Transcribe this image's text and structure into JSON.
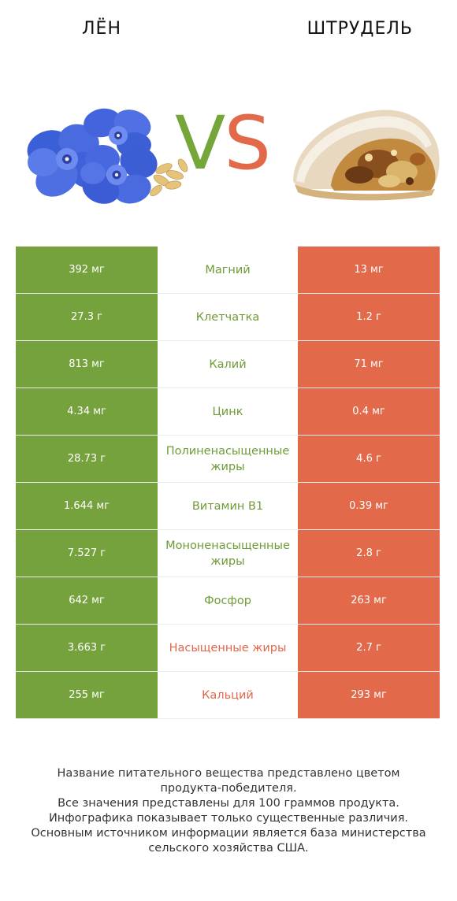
{
  "header": {
    "left_title": "ЛЁН",
    "right_title": "ШТРУДЕЛЬ"
  },
  "vs": {
    "v": "V",
    "s": "S"
  },
  "colors": {
    "green": "#76a23d",
    "red": "#e2694a"
  },
  "rows": [
    {
      "left": "392 мг",
      "name": "Магний",
      "right": "13 мг",
      "winner": "left"
    },
    {
      "left": "27.3 г",
      "name": "Клетчатка",
      "right": "1.2 г",
      "winner": "left"
    },
    {
      "left": "813 мг",
      "name": "Калий",
      "right": "71 мг",
      "winner": "left"
    },
    {
      "left": "4.34 мг",
      "name": "Цинк",
      "right": "0.4 мг",
      "winner": "left"
    },
    {
      "left": "28.73 г",
      "name": "Полиненасыщенные жиры",
      "right": "4.6 г",
      "winner": "left"
    },
    {
      "left": "1.644 мг",
      "name": "Витамин B1",
      "right": "0.39 мг",
      "winner": "left"
    },
    {
      "left": "7.527 г",
      "name": "Мононенасыщенные жиры",
      "right": "2.8 г",
      "winner": "left"
    },
    {
      "left": "642 мг",
      "name": "Фосфор",
      "right": "263 мг",
      "winner": "left"
    },
    {
      "left": "3.663 г",
      "name": "Насыщенные жиры",
      "right": "2.7 г",
      "winner": "right"
    },
    {
      "left": "255 мг",
      "name": "Кальций",
      "right": "293 мг",
      "winner": "right"
    }
  ],
  "footer": {
    "line1": "Название питательного вещества представлено цветом",
    "line2": "продукта-победителя.",
    "line3": "Все значения представлены для 100 граммов продукта.",
    "line4": "Инфографика показывает только существенные различия.",
    "line5": "Основным источником информации является база министерства",
    "line6": "сельского хозяйства США."
  }
}
